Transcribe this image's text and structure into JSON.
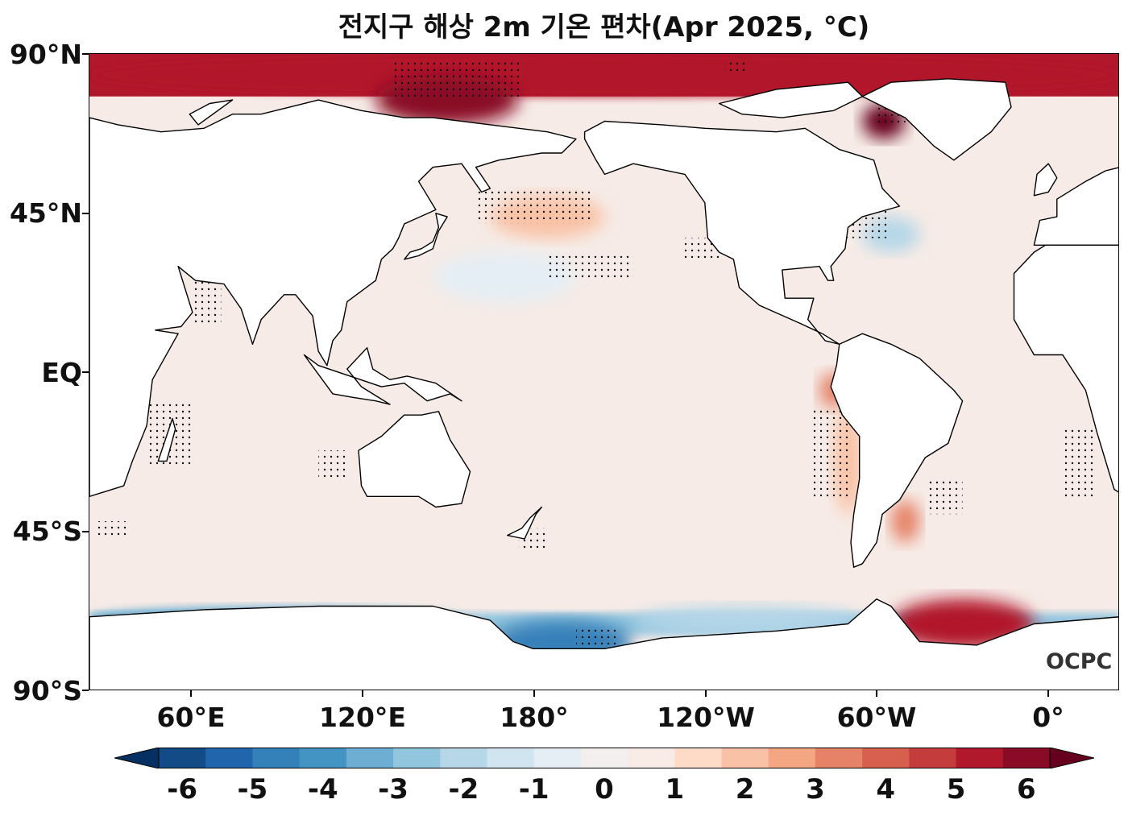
{
  "title": "전지구 해상 2m 기온 편차(Apr 2025, °C)",
  "logo": "OCPC",
  "lat_labels": [
    "90°N",
    "45°N",
    "EQ",
    "45°S",
    "90°S"
  ],
  "lon_labels": [
    "60°E",
    "120°E",
    "180°",
    "120°W",
    "60°W",
    "0°"
  ],
  "colorbar": {
    "labels": [
      "-6",
      "-5",
      "-4",
      "-3",
      "-2",
      "-1",
      "0",
      "1",
      "2",
      "3",
      "4",
      "5",
      "6"
    ],
    "colors": [
      "#053061",
      "#134b87",
      "#2166ac",
      "#3480b9",
      "#4393c3",
      "#6eaed2",
      "#92c5de",
      "#b5d7e8",
      "#d1e5f0",
      "#e4eef4",
      "#f2efee",
      "#f9ece6",
      "#fddbc7",
      "#f9c2a6",
      "#f4a582",
      "#e58267",
      "#d6604d",
      "#c43c3c",
      "#b2182b",
      "#8a0b25",
      "#67001f"
    ]
  },
  "map": {
    "projection": "equirectangular, central longitude 200°E",
    "extent": {
      "lon_min": 20,
      "lon_max": 380,
      "lat_min": -90,
      "lat_max": 90
    },
    "ocean_base_color": "#f6ebe6",
    "land_color": "#ffffff",
    "anomaly_regions": [
      {
        "name": "arctic-warm",
        "lon": [
          20,
          380
        ],
        "lat": [
          78,
          90
        ],
        "anomaly": 4.5
      },
      {
        "name": "barents-kara-warm",
        "lon": [
          120,
          170
        ],
        "lat": [
          70,
          84
        ],
        "anomaly": 5.5
      },
      {
        "name": "baffin-bay-warm",
        "lon": [
          290,
          305
        ],
        "lat": [
          66,
          76
        ],
        "anomaly": 6
      },
      {
        "name": "nw-pacific-warm",
        "lon": [
          160,
          200
        ],
        "lat": [
          38,
          50
        ],
        "anomaly": 1.5
      },
      {
        "name": "kuroshio-cool",
        "lon": [
          140,
          190
        ],
        "lat": [
          20,
          34
        ],
        "anomaly": -0.8
      },
      {
        "name": "gulf-stream-cool",
        "lon": [
          290,
          310
        ],
        "lat": [
          34,
          44
        ],
        "anomaly": -1.8
      },
      {
        "name": "peru-coast-warm",
        "lon": [
          275,
          285
        ],
        "lat": [
          -10,
          0
        ],
        "anomaly": 3
      },
      {
        "name": "chile-coast-warm",
        "lon": [
          280,
          290
        ],
        "lat": [
          -40,
          -10
        ],
        "anomaly": 2
      },
      {
        "name": "patagonia-shelf-warm",
        "lon": [
          300,
          310
        ],
        "lat": [
          -48,
          -36
        ],
        "anomaly": 3
      },
      {
        "name": "ross-sea-cold",
        "lon": [
          160,
          210
        ],
        "lat": [
          -82,
          -70
        ],
        "anomaly": -4.5
      },
      {
        "name": "weddell-warm",
        "lon": [
          300,
          350
        ],
        "lat": [
          -78,
          -64
        ],
        "anomaly": 4.5
      },
      {
        "name": "indian-southern-cold",
        "lon": [
          20,
          150
        ],
        "lat": [
          -72,
          -66
        ],
        "anomaly": -3
      },
      {
        "name": "amundsen-cool",
        "lon": [
          210,
          290
        ],
        "lat": [
          -74,
          -66
        ],
        "anomaly": -2
      }
    ],
    "significance": "stippled dots mark statistically significant anomalies"
  }
}
